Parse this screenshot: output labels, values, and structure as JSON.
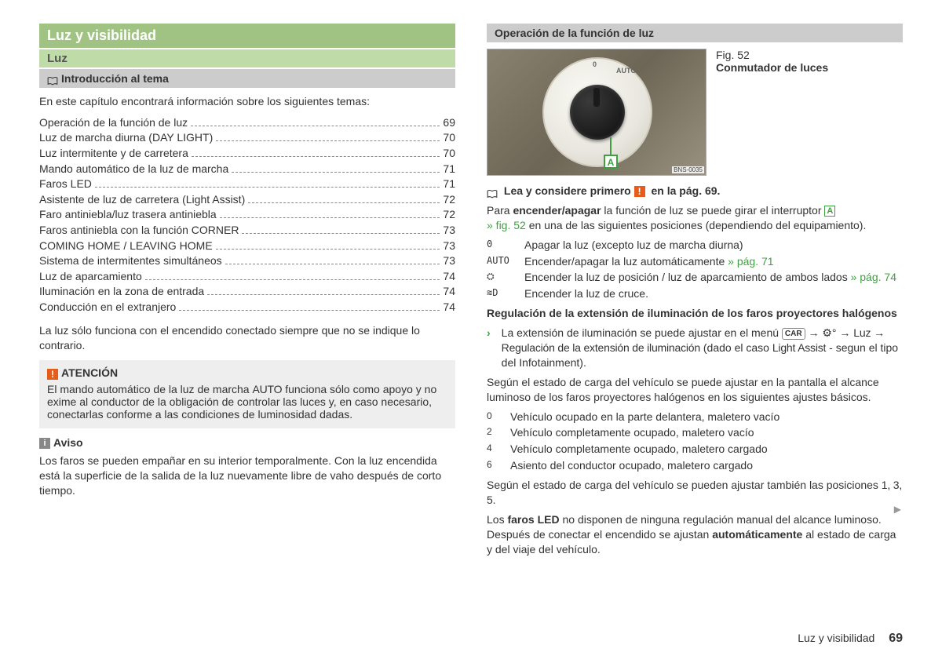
{
  "left": {
    "h1": "Luz y visibilidad",
    "h2": "Luz",
    "h3": "Introducción al tema",
    "intro": "En este capítulo encontrará información sobre los siguientes temas:",
    "toc": [
      {
        "label": "Operación de la función de luz",
        "page": "69"
      },
      {
        "label": "Luz de marcha diurna (DAY LIGHT)",
        "page": "70"
      },
      {
        "label": "Luz intermitente y de carretera",
        "page": "70"
      },
      {
        "label": "Mando automático de la luz de marcha",
        "page": "71"
      },
      {
        "label": "Faros LED",
        "page": "71"
      },
      {
        "label": "Asistente de luz de carretera (Light Assist)",
        "page": "72"
      },
      {
        "label": "Faro antiniebla/luz trasera antiniebla",
        "page": "72"
      },
      {
        "label": "Faros antiniebla con la función CORNER",
        "page": "73"
      },
      {
        "label": "COMING HOME / LEAVING HOME",
        "page": "73"
      },
      {
        "label": "Sistema de intermitentes simultáneos",
        "page": "73"
      },
      {
        "label": "Luz de aparcamiento",
        "page": "74"
      },
      {
        "label": "Iluminación en la zona de entrada",
        "page": "74"
      },
      {
        "label": "Conducción en el extranjero",
        "page": "74"
      }
    ],
    "after_toc": "La luz sólo funciona con el encendido conectado siempre que no se indique lo contrario.",
    "warn_title": "ATENCIÓN",
    "warn_body_1": "El mando automático de la luz de marcha ",
    "warn_auto": "AUTO",
    "warn_body_2": " funciona sólo como apoyo y no exime al conductor de la obligación de controlar las luces y, en caso necesario, conectarlas conforme a las condiciones de luminosidad dadas.",
    "note_title": "Aviso",
    "note_body": "Los faros se pueden empañar en su interior temporalmente. Con la luz encendida está la superficie de la salida de la luz nuevamente libre de vaho después de corto tiempo."
  },
  "right": {
    "h3": "Operación de la función de luz",
    "fig_num": "Fig. 52",
    "fig_title": "Conmutador de luces",
    "marker": "A",
    "img_code": "BNS-0035",
    "dial_labels": {
      "zero": "0",
      "auto": "AUTO"
    },
    "read_first_1": "Lea y considere primero ",
    "read_first_2": " en la pág. 69.",
    "p2_a": "Para ",
    "p2_b": "encender/apagar",
    "p2_c": " la función de luz se puede girar el interruptor ",
    "p2_d": " » fig. 52",
    "p2_e": " en una de las siguientes posiciones (dependiendo del equipamiento).",
    "positions": [
      {
        "sym": "0",
        "text": "Apagar la luz (excepto luz de marcha diurna)"
      },
      {
        "sym": "AUTO",
        "text_a": "Encender/apagar la luz automáticamente ",
        "ref": "» pág. 71"
      },
      {
        "sym": "⛭",
        "text_a": "Encender la luz de posición / luz de aparcamiento de ambos lados ",
        "ref": "» pág. 74"
      },
      {
        "sym": "≋D",
        "text": "Encender la luz de cruce."
      }
    ],
    "reg_title": "Regulación de la extensión de iluminación de los faros proyectores halógenos",
    "reg_bullet_a": "La extensión de iluminación se puede ajustar en el menú ",
    "reg_car": "CAR",
    "reg_arrow": " → ",
    "reg_gear": "⚙°",
    "reg_luz": "Luz",
    "reg_cond": "Regulación de la extensión de iluminación",
    "reg_paren_a": " (dado el caso ",
    "reg_la": "Light Assist",
    "reg_paren_b": " - segun el tipo del Infotainment).",
    "p3": "Según el estado de carga del vehículo se puede ajustar en la pantalla el alcance luminoso de los faros proyectores halógenos en los siguientes ajustes básicos.",
    "loads": [
      {
        "sym": "0",
        "text": "Vehículo ocupado en la parte delantera, maletero vacío"
      },
      {
        "sym": "2",
        "text": "Vehículo completamente ocupado, maletero vacío"
      },
      {
        "sym": "4",
        "text": "Vehículo completamente ocupado, maletero cargado"
      },
      {
        "sym": "6",
        "text": "Asiento del conductor ocupado, maletero cargado"
      }
    ],
    "p4_a": "Según el estado de carga del vehículo se pueden ajustar también las posiciones ",
    "p4_nums": "1, 3, 5",
    "p4_b": ".",
    "p5_a": "Los ",
    "p5_b": "faros LED",
    "p5_c": " no disponen de ninguna regulación manual del alcance luminoso. Después de conectar el encendido se ajustan ",
    "p5_d": "automáticamente",
    "p5_e": " al estado de carga y del viaje del vehículo."
  },
  "footer": {
    "section": "Luz y visibilidad",
    "page": "69"
  }
}
